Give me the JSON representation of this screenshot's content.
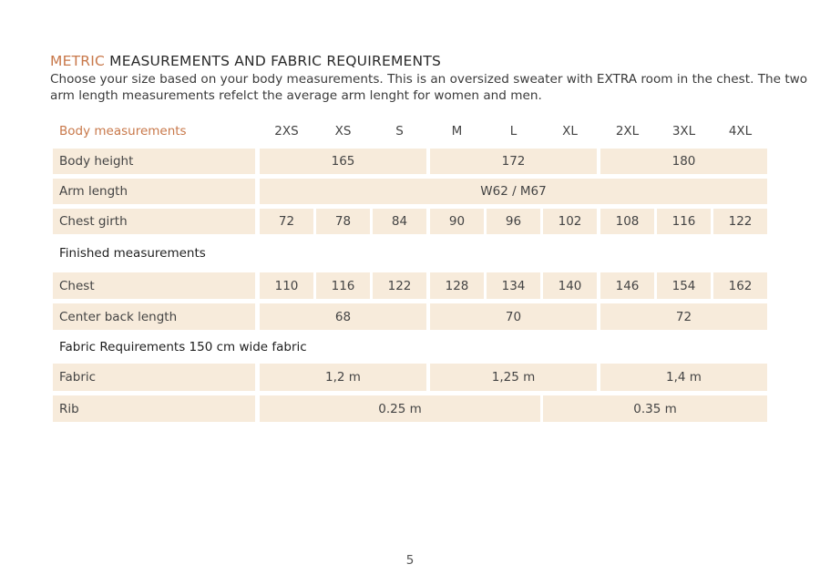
{
  "title": {
    "accent": "METRIC",
    "rest": " MEASUREMENTS AND FABRIC REQUIREMENTS"
  },
  "intro": {
    "line1": "Choose your size based on your body measurements. This is an oversized sweater with EXTRA room in the chest. The two",
    "line2": "arm length measurements refelct the average arm lenght for women and men."
  },
  "header": {
    "label": "Body measurements",
    "sizes": [
      "2XS",
      "XS",
      "S",
      "M",
      "L",
      "XL",
      "2XL",
      "3XL",
      "4XL"
    ]
  },
  "body": {
    "height": {
      "label": "Body height",
      "values": [
        "165",
        "172",
        "180"
      ]
    },
    "arm": {
      "label": "Arm length",
      "value": "W62  /  M67"
    },
    "chest_girth": {
      "label": "Chest girth",
      "values": [
        "72",
        "78",
        "84",
        "90",
        "96",
        "102",
        "108",
        "116",
        "122"
      ]
    }
  },
  "finished": {
    "heading": "Finished measurements",
    "chest": {
      "label": "Chest",
      "values": [
        "110",
        "116",
        "122",
        "128",
        "134",
        "140",
        "146",
        "154",
        "162"
      ]
    },
    "back_length": {
      "label": "Center back length",
      "values": [
        "68",
        "70",
        "72"
      ]
    }
  },
  "fabric": {
    "heading": "Fabric Requirements 150 cm wide fabric",
    "fabric_row": {
      "label": "Fabric",
      "values": [
        "1,2 m",
        "1,25 m",
        "1,4 m"
      ]
    },
    "rib_row": {
      "label": "Rib",
      "values": [
        "0.25 m",
        "0.35 m"
      ]
    }
  },
  "page_number": "5",
  "colors": {
    "accent": "#c8784a",
    "cell_bg": "#f7ebdb"
  }
}
